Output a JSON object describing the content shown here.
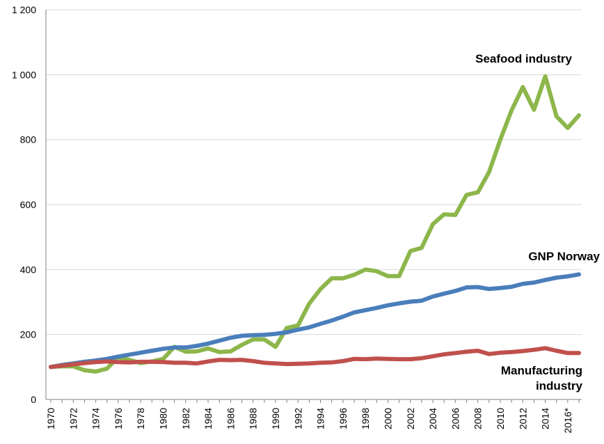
{
  "chart_data": {
    "type": "line",
    "title": "",
    "xlabel": "",
    "ylabel": "",
    "ylim": [
      0,
      1200
    ],
    "yticks": [
      0,
      200,
      400,
      600,
      800,
      1000,
      1200
    ],
    "ytick_labels": [
      "0",
      "200",
      "400",
      "600",
      "800",
      "1 000",
      "1 200"
    ],
    "x": [
      1970,
      1971,
      1972,
      1973,
      1974,
      1975,
      1976,
      1977,
      1978,
      1979,
      1980,
      1981,
      1982,
      1983,
      1984,
      1985,
      1986,
      1987,
      1988,
      1989,
      1990,
      1991,
      1992,
      1993,
      1994,
      1995,
      1996,
      1997,
      1998,
      1999,
      2000,
      2001,
      2002,
      2003,
      2004,
      2005,
      2006,
      2007,
      2008,
      2009,
      2010,
      2011,
      2012,
      2013,
      2014,
      2015,
      2016,
      2017
    ],
    "xtick_labels": [
      "1970",
      "1972",
      "1974",
      "1976",
      "1978",
      "1980",
      "1982",
      "1984",
      "1986",
      "1988",
      "1990",
      "1992",
      "1994",
      "1996",
      "1998",
      "2000",
      "2002",
      "2004",
      "2006",
      "2008",
      "2010",
      "2012",
      "2014",
      "2016*"
    ],
    "grid": true,
    "series": [
      {
        "name": "Seafood industry",
        "color": "#8db64b",
        "values": [
          100,
          102,
          102,
          90,
          86,
          95,
          130,
          122,
          112,
          117,
          125,
          162,
          147,
          148,
          157,
          146,
          148,
          168,
          185,
          185,
          162,
          220,
          228,
          295,
          340,
          373,
          373,
          384,
          400,
          395,
          380,
          380,
          457,
          467,
          540,
          570,
          568,
          630,
          638,
          700,
          800,
          890,
          962,
          892,
          995,
          872,
          836,
          875
        ]
      },
      {
        "name": "GNP Norway",
        "color": "#4a7ebb",
        "values": [
          100,
          106,
          111,
          116,
          120,
          125,
          132,
          138,
          144,
          150,
          156,
          160,
          160,
          165,
          172,
          181,
          190,
          196,
          198,
          199,
          202,
          207,
          215,
          222,
          233,
          243,
          255,
          268,
          275,
          282,
          290,
          296,
          301,
          304,
          317,
          326,
          334,
          345,
          346,
          340,
          343,
          347,
          356,
          360,
          368,
          375,
          379,
          385
        ]
      },
      {
        "name": "Manufacturing\nindustry",
        "color": "#c0504d",
        "values": [
          100,
          104,
          108,
          112,
          115,
          117,
          115,
          114,
          116,
          116,
          115,
          113,
          113,
          111,
          117,
          122,
          121,
          122,
          118,
          113,
          111,
          109,
          110,
          111,
          113,
          114,
          118,
          125,
          124,
          126,
          125,
          124,
          124,
          127,
          133,
          139,
          143,
          147,
          150,
          140,
          144,
          146,
          149,
          153,
          158,
          150,
          143,
          143
        ]
      }
    ]
  }
}
